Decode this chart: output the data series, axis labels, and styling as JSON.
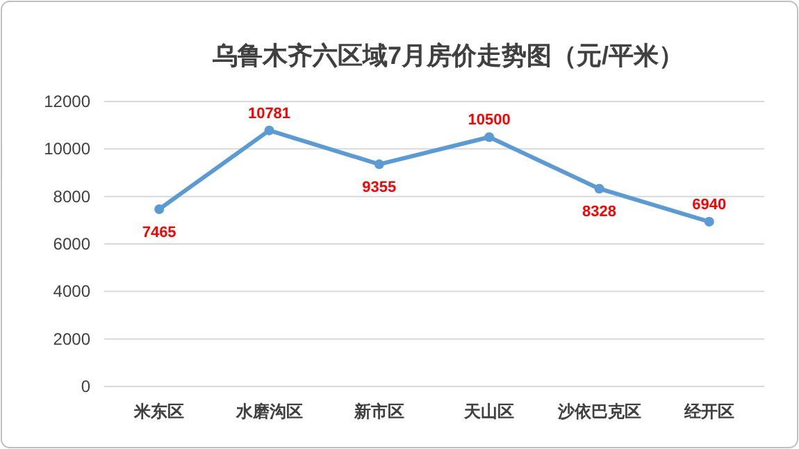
{
  "chart_data": {
    "type": "line",
    "title": "乌鲁木齐六区域7月房价走势图（元/平米）",
    "categories": [
      "米东区",
      "水磨沟区",
      "新市区",
      "天山区",
      "沙依巴克区",
      "经开区"
    ],
    "series": [
      {
        "color": "#5b9bd5",
        "values": [
          7465,
          10781,
          9355,
          10500,
          8328,
          6940
        ]
      }
    ],
    "ylim": [
      0,
      12000
    ],
    "yticks": [
      0,
      2000,
      4000,
      6000,
      8000,
      10000,
      12000
    ],
    "grid": "y",
    "marker": "circle",
    "line_style": "solid",
    "data_labels": true
  }
}
